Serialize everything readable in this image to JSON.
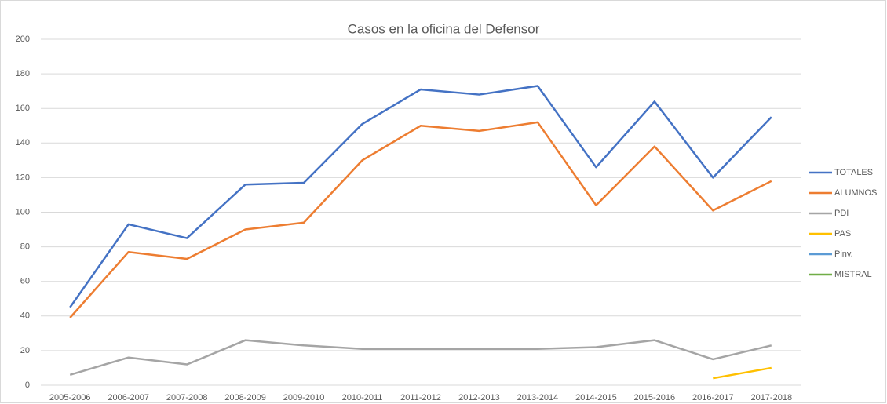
{
  "chart_data": {
    "type": "line",
    "title": "Casos en la oficina del Defensor",
    "categories": [
      "2005-2006",
      "2006-2007",
      "2007-2008",
      "2008-2009",
      "2009-2010",
      "2010-2011",
      "2011-2012",
      "2012-2013",
      "2013-2014",
      "2014-2015",
      "2015-2016",
      "2016-2017",
      "2017-2018"
    ],
    "series": [
      {
        "name": "TOTALES",
        "color": "#4472c4",
        "values": [
          45,
          93,
          85,
          116,
          117,
          151,
          171,
          168,
          173,
          126,
          164,
          120,
          155
        ]
      },
      {
        "name": "ALUMNOS",
        "color": "#ed7d31",
        "values": [
          39,
          77,
          73,
          90,
          94,
          130,
          150,
          147,
          152,
          104,
          138,
          101,
          118
        ]
      },
      {
        "name": "PDI",
        "color": "#a5a5a5",
        "values": [
          6,
          16,
          12,
          26,
          23,
          21,
          21,
          21,
          21,
          22,
          26,
          15,
          23
        ]
      },
      {
        "name": "PAS",
        "color": "#ffc000",
        "values": [
          null,
          null,
          null,
          null,
          null,
          null,
          null,
          null,
          null,
          null,
          null,
          4,
          10
        ]
      },
      {
        "name": "Pinv.",
        "color": "#5b9bd5",
        "values": [
          null,
          null,
          null,
          null,
          null,
          null,
          null,
          null,
          null,
          null,
          null,
          null,
          null
        ]
      },
      {
        "name": "MISTRAL",
        "color": "#70ad47",
        "values": [
          null,
          null,
          null,
          null,
          null,
          null,
          null,
          null,
          null,
          null,
          null,
          null,
          null
        ]
      }
    ],
    "ylim": [
      0,
      200
    ],
    "yticks": [
      0,
      20,
      40,
      60,
      80,
      100,
      120,
      140,
      160,
      180,
      200
    ],
    "grid": true,
    "legend": "right"
  }
}
